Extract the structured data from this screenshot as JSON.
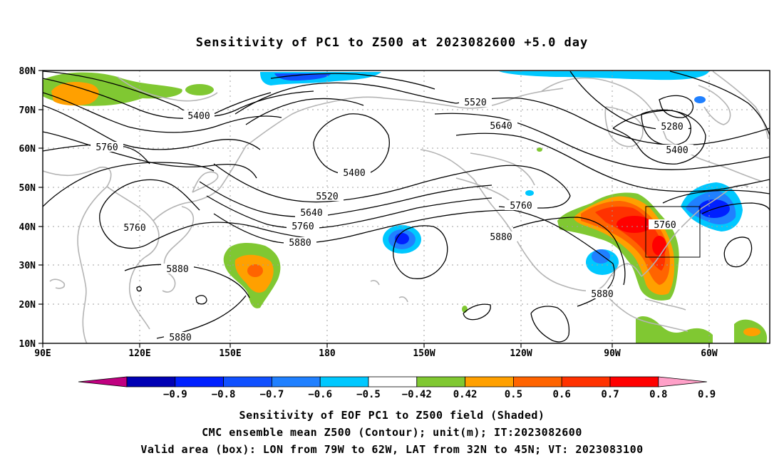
{
  "title": "Sensitivity of PC1 to Z500 at 2023082600 +5.0 day",
  "axes": {
    "lat_labels": [
      "80N",
      "70N",
      "60N",
      "50N",
      "40N",
      "30N",
      "20N",
      "10N"
    ],
    "lon_labels": [
      "90E",
      "120E",
      "150E",
      "180",
      "150W",
      "120W",
      "90W",
      "60W"
    ]
  },
  "contour_labels": [
    {
      "id": "c5400a",
      "text": "5400"
    },
    {
      "id": "c5520a",
      "text": "5520"
    },
    {
      "id": "c5640a",
      "text": "5640"
    },
    {
      "id": "c5280a",
      "text": "5280"
    },
    {
      "id": "c5400b",
      "text": "5400"
    },
    {
      "id": "c5760a",
      "text": "5760"
    },
    {
      "id": "c5400c",
      "text": "5400"
    },
    {
      "id": "c5520b",
      "text": "5520"
    },
    {
      "id": "c5640b",
      "text": "5640"
    },
    {
      "id": "c5760b",
      "text": "5760"
    },
    {
      "id": "c5760c",
      "text": "5760"
    },
    {
      "id": "c5880a",
      "text": "5880"
    },
    {
      "id": "c5880b",
      "text": "5880"
    },
    {
      "id": "c5760d",
      "text": "5760"
    },
    {
      "id": "c5880c",
      "text": "5880"
    },
    {
      "id": "c5760e",
      "text": "5760"
    },
    {
      "id": "c5880d",
      "text": "5880"
    },
    {
      "id": "c5880e",
      "text": "5880"
    }
  ],
  "colorbar": {
    "colors": [
      "#c00080",
      "#0000b4",
      "#0020ff",
      "#1050ff",
      "#2080ff",
      "#00c8ff",
      "#ffffff",
      "#80c832",
      "#ffa000",
      "#ff6400",
      "#ff3200",
      "#ff0000",
      "#ffa0c8"
    ],
    "labels": [
      "-0.9",
      "-0.8",
      "-0.7",
      "-0.6",
      "-0.5",
      "-0.42",
      "0.42",
      "0.5",
      "0.6",
      "0.7",
      "0.8",
      "0.9"
    ]
  },
  "captions": {
    "line1": "Sensitivity of EOF PC1 to Z500 field (Shaded)",
    "line2": "CMC ensemble mean Z500 (Contour); unit(m); IT:2023082600",
    "line3": "Valid area (box): LON from 79W to 62W, LAT from 32N to 45N; VT: 2023083100"
  }
}
